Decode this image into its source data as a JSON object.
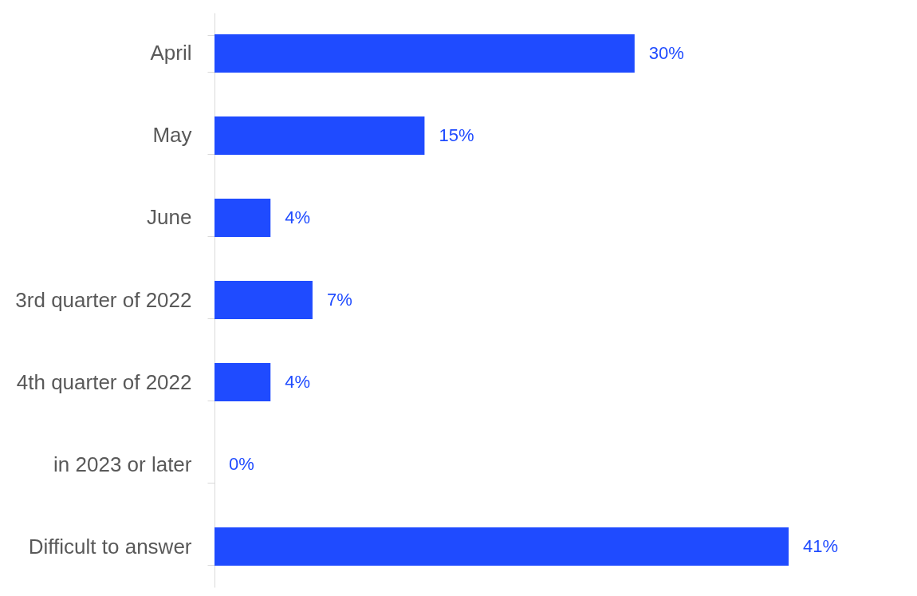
{
  "chart_data": {
    "type": "bar",
    "orientation": "horizontal",
    "categories": [
      "April",
      "May",
      "June",
      "3rd quarter of 2022",
      "4th quarter of 2022",
      "in 2023 or later",
      "Difficult to answer"
    ],
    "values": [
      30,
      15,
      4,
      7,
      4,
      0,
      41
    ],
    "value_labels": [
      "30%",
      "15%",
      "4%",
      "7%",
      "4%",
      "0%",
      "41%"
    ],
    "color": "#1f4bff",
    "tick_labels": "y"
  }
}
